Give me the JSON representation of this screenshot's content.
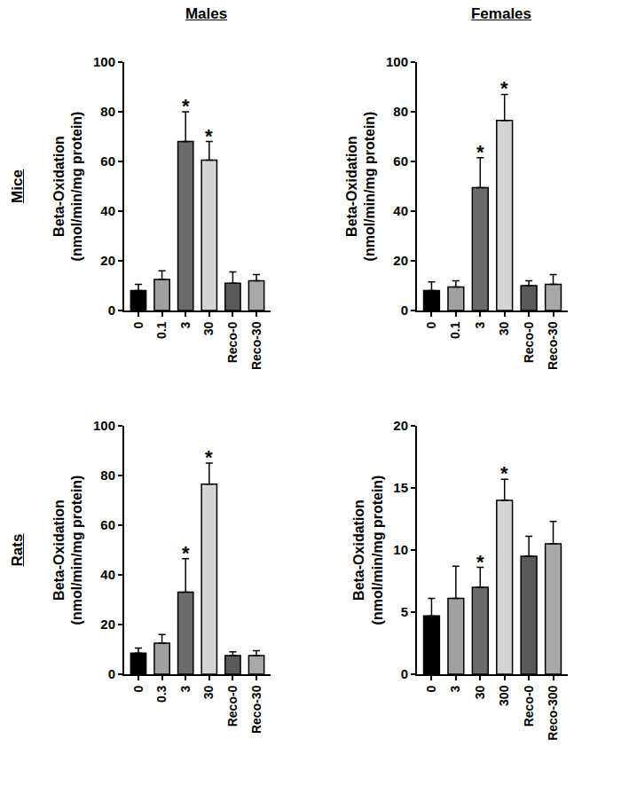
{
  "column_labels": [
    "Males",
    "Females"
  ],
  "row_labels": [
    "Mice",
    "Rats"
  ],
  "chart_data": [
    {
      "type": "bar",
      "row": "Mice",
      "column": "Males",
      "y_label": "Beta-Oxidation\n(nmol/min/mg protein)",
      "categories": [
        "0",
        "0.1",
        "3",
        "30",
        "Reco-0",
        "Reco-30"
      ],
      "values": [
        8,
        12.5,
        68,
        60.5,
        11,
        12
      ],
      "errors": [
        2.5,
        3.5,
        12,
        7.5,
        4.5,
        2.5
      ],
      "colors": [
        "#000000",
        "#a0a0a0",
        "#6b6b6b",
        "#d4d4d4",
        "#5a5a5a",
        "#a8a8a8"
      ],
      "ylim": [
        0,
        100
      ],
      "yticks": [
        0,
        20,
        40,
        60,
        80,
        100
      ],
      "grid": false,
      "annotations": [
        {
          "category": "3",
          "text": "*"
        },
        {
          "category": "30",
          "text": "*"
        }
      ]
    },
    {
      "type": "bar",
      "row": "Mice",
      "column": "Females",
      "y_label": "Beta-Oxidation\n(nmol/min/mg protein)",
      "categories": [
        "0",
        "0.1",
        "3",
        "30",
        "Reco-0",
        "Reco-30"
      ],
      "values": [
        8,
        9.5,
        49.5,
        76.5,
        10,
        10.5
      ],
      "errors": [
        3.5,
        2.5,
        12,
        10.5,
        2,
        4
      ],
      "colors": [
        "#000000",
        "#a0a0a0",
        "#6b6b6b",
        "#d4d4d4",
        "#5a5a5a",
        "#a8a8a8"
      ],
      "ylim": [
        0,
        100
      ],
      "yticks": [
        0,
        20,
        40,
        60,
        80,
        100
      ],
      "grid": false,
      "annotations": [
        {
          "category": "3",
          "text": "*"
        },
        {
          "category": "30",
          "text": "*"
        }
      ]
    },
    {
      "type": "bar",
      "row": "Rats",
      "column": "Males",
      "y_label": "Beta-Oxidation\n(nmol/min/mg protein)",
      "categories": [
        "0",
        "0.3",
        "3",
        "30",
        "Reco-0",
        "Reco-30"
      ],
      "values": [
        8.5,
        12.5,
        33,
        76.5,
        7.5,
        7.5
      ],
      "errors": [
        2,
        3.5,
        13.5,
        8.5,
        1.5,
        2
      ],
      "colors": [
        "#000000",
        "#a0a0a0",
        "#6b6b6b",
        "#d4d4d4",
        "#5a5a5a",
        "#a8a8a8"
      ],
      "ylim": [
        0,
        100
      ],
      "yticks": [
        0,
        20,
        40,
        60,
        80,
        100
      ],
      "grid": false,
      "annotations": [
        {
          "category": "3",
          "text": "*"
        },
        {
          "category": "30",
          "text": "*"
        }
      ]
    },
    {
      "type": "bar",
      "row": "Rats",
      "column": "Females",
      "y_label": "Beta-Oxidation\n(nmol/min/mg protein)",
      "categories": [
        "0",
        "3",
        "30",
        "300",
        "Reco-0",
        "Reco-300"
      ],
      "values": [
        4.7,
        6.1,
        7,
        14,
        9.5,
        10.5
      ],
      "errors": [
        1.4,
        2.6,
        1.6,
        1.7,
        1.6,
        1.8
      ],
      "colors": [
        "#000000",
        "#a0a0a0",
        "#6b6b6b",
        "#d4d4d4",
        "#5a5a5a",
        "#a8a8a8"
      ],
      "ylim": [
        0,
        20
      ],
      "yticks": [
        0,
        5,
        10,
        15,
        20
      ],
      "grid": false,
      "annotations": [
        {
          "category": "30",
          "text": "*"
        },
        {
          "category": "300",
          "text": "*"
        }
      ]
    }
  ]
}
